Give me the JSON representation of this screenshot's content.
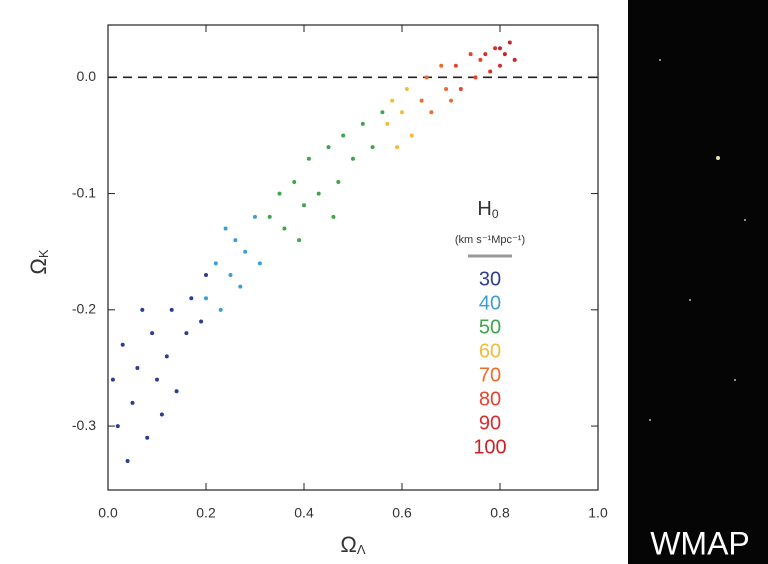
{
  "chart_data": {
    "type": "scatter",
    "x_label": {
      "symbol": "Ω",
      "subscript": "Λ"
    },
    "y_label": {
      "symbol": "Ω",
      "subscript": "K"
    },
    "legend_title": {
      "symbol": "H",
      "subscript": "0",
      "units": "(km s⁻¹Mpc⁻¹)"
    },
    "side_label": "WMAP",
    "xlim": [
      0,
      1
    ],
    "ylim": [
      -0.355,
      0.045
    ],
    "xticks": [
      {
        "value": 0,
        "label": "0.0"
      },
      0.2,
      0.4,
      0.6,
      0.8,
      {
        "value": 1,
        "label": "1.0"
      }
    ],
    "yticks": [
      {
        "value": 0,
        "label": "0.0"
      },
      -0.1,
      -0.2,
      -0.3
    ],
    "hline": 0,
    "grid": false,
    "series": [
      {
        "name": "30",
        "color": "#2d3c94",
        "x": [
          0.01,
          0.02,
          0.03,
          0.05,
          0.06,
          0.08,
          0.09,
          0.1,
          0.12,
          0.13,
          0.14,
          0.16,
          0.17,
          0.19,
          0.2,
          0.04,
          0.11,
          0.07
        ],
        "values": [
          -0.26,
          -0.3,
          -0.23,
          -0.28,
          -0.25,
          -0.31,
          -0.22,
          -0.26,
          -0.24,
          -0.2,
          -0.27,
          -0.22,
          -0.19,
          -0.21,
          -0.17,
          -0.33,
          -0.29,
          -0.2
        ]
      },
      {
        "name": "40",
        "color": "#3c9fd2",
        "x": [
          0.2,
          0.22,
          0.23,
          0.25,
          0.26,
          0.27,
          0.28,
          0.3,
          0.31,
          0.24
        ],
        "values": [
          -0.19,
          -0.16,
          -0.2,
          -0.17,
          -0.14,
          -0.18,
          -0.15,
          -0.12,
          -0.16,
          -0.13
        ]
      },
      {
        "name": "50",
        "color": "#3fa54a",
        "x": [
          0.33,
          0.35,
          0.36,
          0.38,
          0.4,
          0.41,
          0.43,
          0.45,
          0.47,
          0.48,
          0.5,
          0.52,
          0.54,
          0.56,
          0.39,
          0.46
        ],
        "values": [
          -0.12,
          -0.1,
          -0.13,
          -0.09,
          -0.11,
          -0.07,
          -0.1,
          -0.06,
          -0.09,
          -0.05,
          -0.07,
          -0.04,
          -0.06,
          -0.03,
          -0.14,
          -0.12
        ]
      },
      {
        "name": "60",
        "color": "#f3bb3a",
        "x": [
          0.57,
          0.58,
          0.6,
          0.61,
          0.62,
          0.59
        ],
        "values": [
          -0.04,
          -0.02,
          -0.03,
          -0.01,
          -0.05,
          -0.06
        ]
      },
      {
        "name": "70",
        "color": "#f06a2a",
        "x": [
          0.64,
          0.65,
          0.66,
          0.68,
          0.69,
          0.7
        ],
        "values": [
          -0.02,
          0.0,
          -0.03,
          0.01,
          -0.01,
          -0.02
        ]
      },
      {
        "name": "80",
        "color": "#e8402c",
        "x": [
          0.71,
          0.72,
          0.74,
          0.75,
          0.76
        ],
        "values": [
          0.01,
          -0.01,
          0.02,
          0.0,
          0.015
        ]
      },
      {
        "name": "90",
        "color": "#dc2b2b",
        "x": [
          0.77,
          0.78,
          0.79,
          0.8
        ],
        "values": [
          0.02,
          0.005,
          0.025,
          0.01
        ]
      },
      {
        "name": "100",
        "color": "#cc2222",
        "x": [
          0.81,
          0.82,
          0.8,
          0.83
        ],
        "values": [
          0.02,
          0.03,
          0.025,
          0.015
        ]
      }
    ]
  }
}
